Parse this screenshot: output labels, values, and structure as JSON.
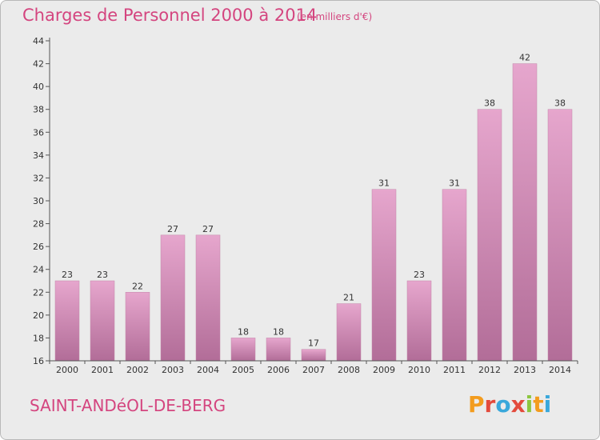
{
  "header": {
    "title": "Charges de Personnel 2000 à 2014",
    "subtitle": "(en milliers d'€)"
  },
  "footer": {
    "commune": "SAINT-ANDéOL-DE-BERG",
    "logo_text": "Proxiti"
  },
  "colors": {
    "title": "#d4457f",
    "bar_light": "#e6a6cd",
    "bar_dark": "#b26d98",
    "background": "#ebebeb"
  },
  "chart_data": {
    "type": "bar",
    "categories": [
      "2000",
      "2001",
      "2002",
      "2003",
      "2004",
      "2005",
      "2006",
      "2007",
      "2008",
      "2009",
      "2010",
      "2011",
      "2012",
      "2013",
      "2014"
    ],
    "values": [
      23,
      23,
      22,
      27,
      27,
      18,
      18,
      17,
      21,
      31,
      23,
      31,
      38,
      42,
      38
    ],
    "ylim": [
      16,
      44
    ],
    "yticks": [
      16,
      18,
      20,
      22,
      24,
      26,
      28,
      30,
      32,
      34,
      36,
      38,
      40,
      42,
      44
    ],
    "grid": false,
    "data_labels": true
  }
}
